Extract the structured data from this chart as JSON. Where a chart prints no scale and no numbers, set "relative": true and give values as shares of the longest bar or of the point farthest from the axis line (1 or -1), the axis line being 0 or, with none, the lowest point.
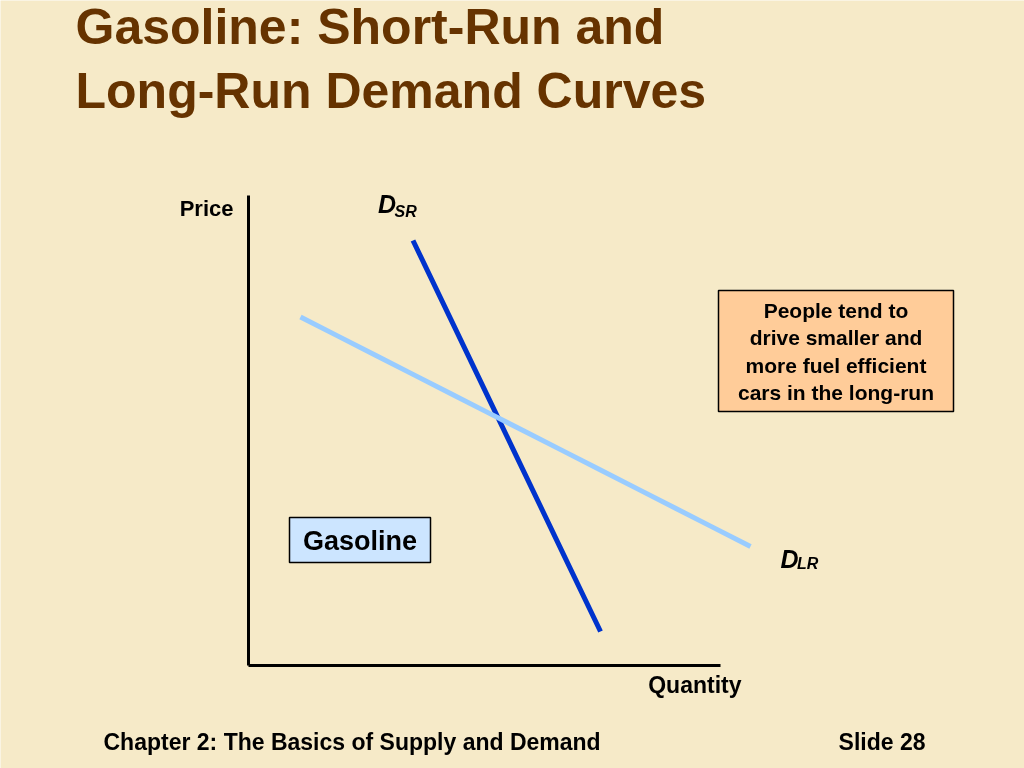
{
  "chart_data": {
    "type": "line",
    "title": "Gasoline: Short-Run and\nLong-Run Demand Curves",
    "xlabel": "Quantity",
    "ylabel": "Price",
    "relative": true,
    "line_style": "solid",
    "categories": [
      null,
      null,
      null,
      null,
      null,
      null,
      null,
      null,
      null,
      null,
      null,
      null,
      null
    ],
    "series": [
      {
        "name": "D$_{SR}$",
        "color": "#0033cc",
        "values": [
          null,
          null,
          null,
          1.0,
          0.816,
          0.632,
          0.448,
          0.264,
          0.08,
          null,
          null,
          null,
          null
        ]
      },
      {
        "name": "D$_{LR}$",
        "color": "#99ccff",
        "values": [
          0.82,
          0.775,
          0.73,
          0.685,
          0.64,
          0.595,
          0.55,
          0.505,
          0.46,
          0.415,
          0.37,
          0.325,
          0.28
        ]
      }
    ],
    "annotations": [
      "Gasoline",
      "People tend to\ndrive smaller and\nmore fuel efficient\ncars in the long-run",
      "Chapter 2: The Basics of Supply and Demand",
      "Slide 28"
    ]
  }
}
